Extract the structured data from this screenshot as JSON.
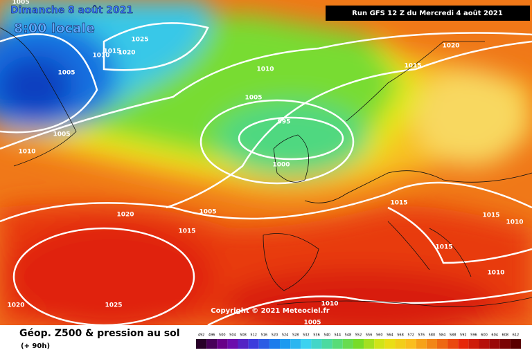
{
  "header": {
    "date": "Dimanche 8 août 2021",
    "time": "8:00 locale",
    "run": "Run GFS 12 Z du Mercredi 4 août 2021"
  },
  "isobars": [
    "1005",
    "1025",
    "1010",
    "1015",
    "1020",
    "1005",
    "1005",
    "1010",
    "1010",
    "1005",
    "995",
    "1000",
    "1005",
    "1020",
    "1015",
    "1020",
    "1015",
    "1015",
    "1015",
    "1010",
    "1015",
    "1010",
    "1020",
    "1025",
    "1010",
    "1005"
  ],
  "copyright": "Copyright © 2021 Meteociel.fr",
  "footer": {
    "title": "Géop. Z500 & pression au sol",
    "lead": "(+ 90h)"
  },
  "scale": [
    492,
    496,
    500,
    504,
    508,
    512,
    516,
    520,
    524,
    528,
    532,
    536,
    540,
    544,
    548,
    552,
    556,
    560,
    564,
    568,
    572,
    576,
    580,
    584,
    588,
    592,
    596,
    600,
    604,
    608,
    612
  ]
}
